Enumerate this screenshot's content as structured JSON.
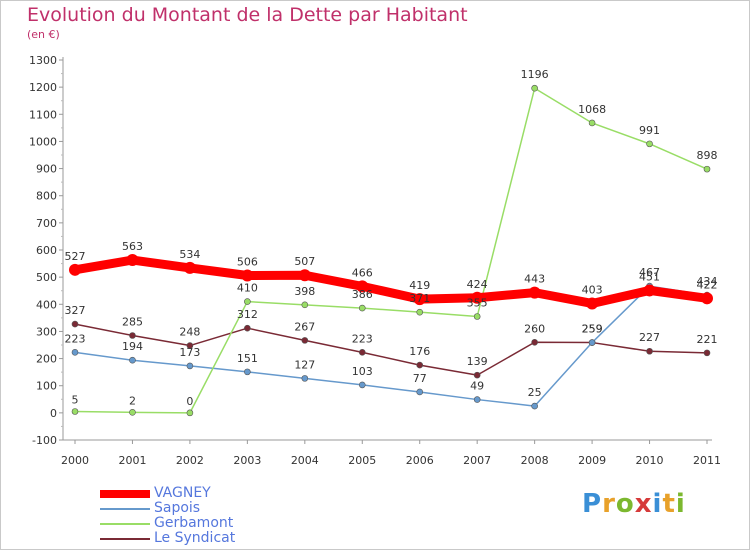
{
  "header": {
    "title": "Evolution du Montant de la Dette par Habitant",
    "subtitle": "(en €)"
  },
  "logo": {
    "letters": [
      {
        "ch": "P",
        "color": "#3a8fd6"
      },
      {
        "ch": "r",
        "color": "#e8a12a"
      },
      {
        "ch": "o",
        "color": "#7cb82f"
      },
      {
        "ch": "x",
        "color": "#d63a3a"
      },
      {
        "ch": "i",
        "color": "#3a8fd6"
      },
      {
        "ch": "t",
        "color": "#e8a12a"
      },
      {
        "ch": "i",
        "color": "#7cb82f"
      }
    ]
  },
  "chart_data": {
    "type": "line",
    "title": "Evolution du Montant de la Dette par Habitant",
    "subtitle": "(en €)",
    "x": [
      "2000",
      "2001",
      "2002",
      "2003",
      "2004",
      "2005",
      "2006",
      "2007",
      "2008",
      "2009",
      "2010",
      "2011"
    ],
    "ylim": [
      -100,
      1300
    ],
    "yticks": [
      -100,
      0,
      100,
      200,
      300,
      400,
      500,
      600,
      700,
      800,
      900,
      1000,
      1100,
      1200,
      1300
    ],
    "grid": false,
    "legend_position": "bottom-left",
    "series": [
      {
        "name": "VAGNEY",
        "color": "#ff0000",
        "values": [
          527,
          563,
          534,
          506,
          507,
          466,
          419,
          424,
          443,
          403,
          451,
          422
        ]
      },
      {
        "name": "Sapois",
        "color": "#6699cc",
        "values": [
          223,
          194,
          173,
          151,
          127,
          103,
          77,
          49,
          25,
          259,
          467,
          434
        ]
      },
      {
        "name": "Gerbamont",
        "color": "#99dd66",
        "values": [
          5,
          2,
          0,
          410,
          398,
          386,
          371,
          355,
          1196,
          1068,
          991,
          898
        ]
      },
      {
        "name": "Le Syndicat",
        "color": "#7a2a35",
        "values": [
          327,
          285,
          248,
          312,
          267,
          223,
          176,
          139,
          260,
          259,
          227,
          221
        ]
      }
    ]
  }
}
